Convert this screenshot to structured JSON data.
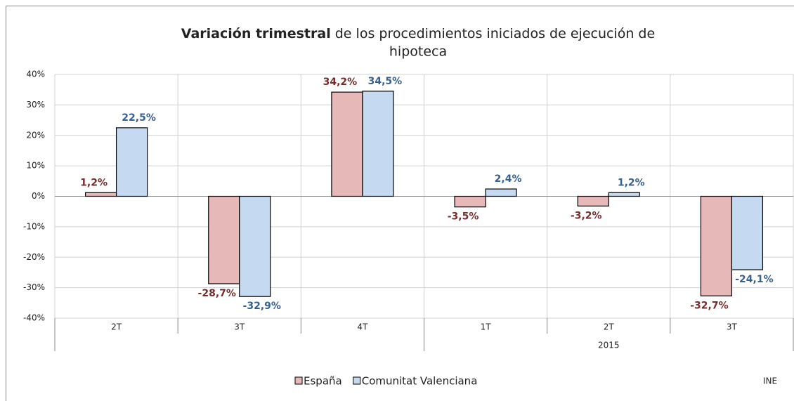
{
  "chart_data": {
    "type": "bar",
    "title": {
      "bold": "Variación trimestral",
      "rest": "de los procedimientos iniciados de ejecución de",
      "rest2": "hipoteca"
    },
    "categories": [
      "2T",
      "3T",
      "4T",
      "1T",
      "2T",
      "3T"
    ],
    "groups": [
      {
        "label": null,
        "count": 3
      },
      {
        "label": "2015",
        "count": 3
      }
    ],
    "series": [
      {
        "name": "España",
        "color": "#e6b8b7",
        "label_color": "#772c2a",
        "values": [
          1.2,
          -28.7,
          34.2,
          -3.5,
          -3.2,
          -32.7
        ],
        "value_labels": [
          "1,2%",
          "-28,7%",
          "34,2%",
          "-3,5%",
          "-3,2%",
          "-32,7%"
        ]
      },
      {
        "name": "Comunitat Valenciana",
        "color": "#c5d9f1",
        "label_color": "#366092",
        "values": [
          22.5,
          -32.9,
          34.5,
          2.4,
          1.2,
          -24.1
        ],
        "value_labels": [
          "22,5%",
          "-32,9%",
          "34,5%",
          "2,4%",
          "1,2%",
          "-24,1%"
        ]
      }
    ],
    "ylim": [
      -40,
      40
    ],
    "yticks": [
      {
        "value": -40,
        "label": "-40%"
      },
      {
        "value": -30,
        "label": "-30%"
      },
      {
        "value": -20,
        "label": "-20%"
      },
      {
        "value": -10,
        "label": "-10%"
      },
      {
        "value": 0,
        "label": "0%"
      },
      {
        "value": 10,
        "label": "10%"
      },
      {
        "value": 20,
        "label": "20%"
      },
      {
        "value": 30,
        "label": "30%"
      },
      {
        "value": 40,
        "label": "40%"
      }
    ],
    "grid": true,
    "source": "INE"
  }
}
